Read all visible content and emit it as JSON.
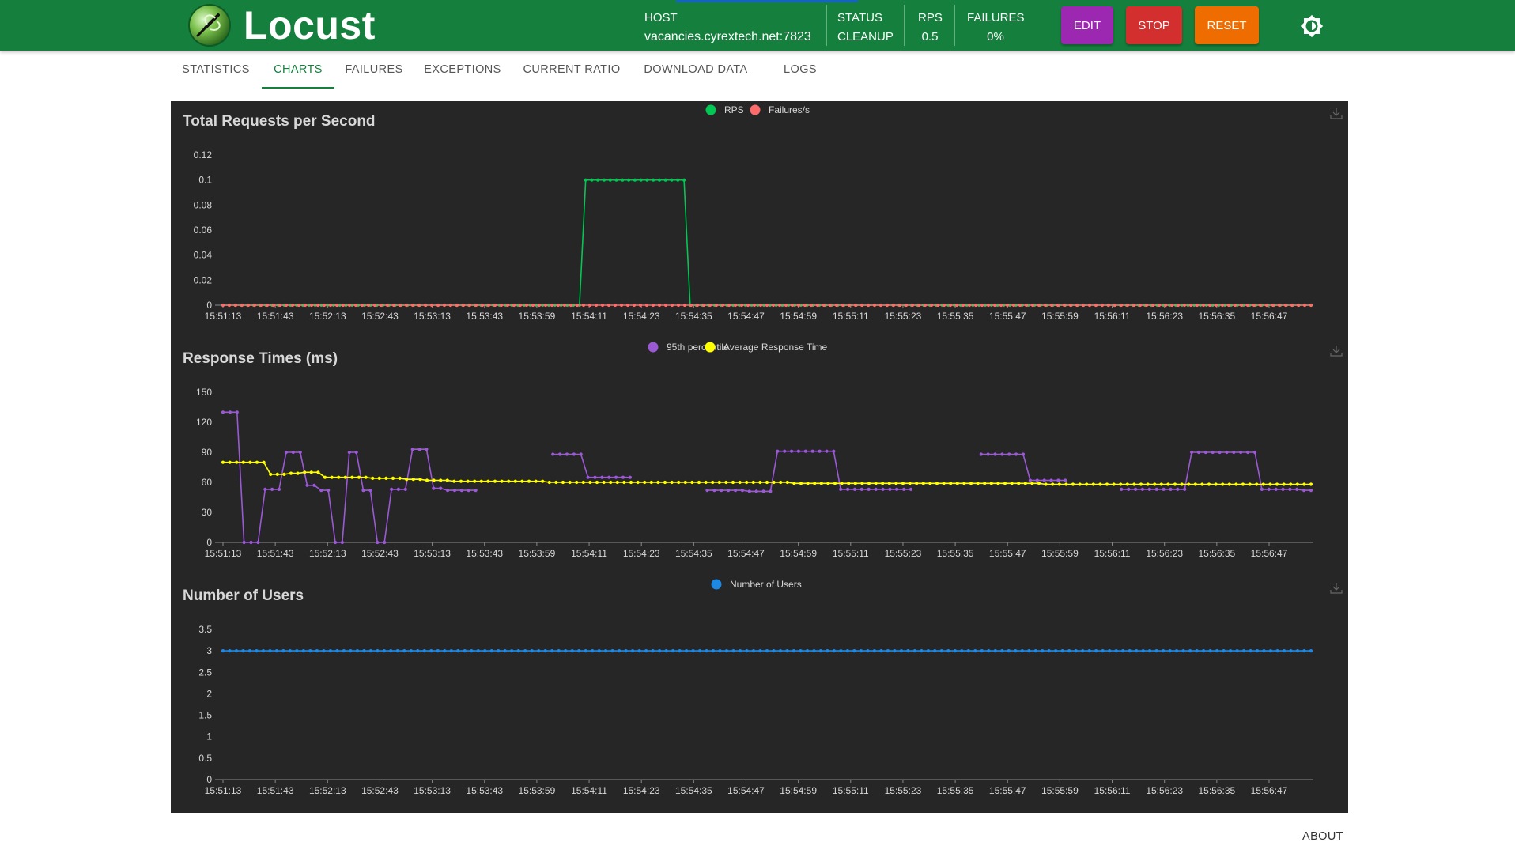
{
  "app": {
    "brand": "Locust"
  },
  "header": {
    "host_label": "HOST",
    "host_value": "vacancies.cyrextech.net:7823",
    "status_label": "STATUS",
    "status_value": "CLEANUP",
    "rps_label": "RPS",
    "rps_value": "0.5",
    "failures_label": "FAILURES",
    "failures_value": "0%",
    "edit_label": "EDIT",
    "stop_label": "STOP",
    "reset_label": "RESET",
    "colors": {
      "bar": "#15803d",
      "edit": "#9c27b0",
      "stop": "#d32f2f",
      "reset": "#ef6c00"
    }
  },
  "tabs": [
    {
      "label": "STATISTICS",
      "active": false
    },
    {
      "label": "CHARTS",
      "active": true
    },
    {
      "label": "FAILURES",
      "active": false
    },
    {
      "label": "EXCEPTIONS",
      "active": false
    },
    {
      "label": "CURRENT RATIO",
      "active": false
    },
    {
      "label": "DOWNLOAD DATA",
      "active": false
    },
    {
      "label": "LOGS",
      "active": false
    }
  ],
  "footer": {
    "about_label": "ABOUT"
  },
  "icons": {
    "download": "download-icon",
    "theme": "brightness-icon",
    "logo": "locust-logo-icon"
  },
  "chart_data": [
    {
      "type": "line",
      "title": "Total Requests per Second",
      "x_tick_labels": [
        "15:51:13",
        "15:51:43",
        "15:52:13",
        "15:52:43",
        "15:53:13",
        "15:53:43",
        "15:53:59",
        "15:54:11",
        "15:54:23",
        "15:54:35",
        "15:54:47",
        "15:54:59",
        "15:55:11",
        "15:55:23",
        "15:55:35",
        "15:55:47",
        "15:55:59",
        "15:56:11",
        "15:56:23",
        "15:56:35",
        "15:56:47"
      ],
      "y_ticks": [
        "0",
        "0.02",
        "0.04",
        "0.06",
        "0.08",
        "0.1",
        "0.12"
      ],
      "ylim": [
        0,
        0.12
      ],
      "legend_position": "top-center",
      "grid": false,
      "series": [
        {
          "name": "RPS",
          "color": "#00c853",
          "values": [
            0,
            0,
            0,
            0,
            0,
            0,
            0,
            0,
            0,
            0,
            0,
            0,
            0,
            0,
            0,
            0,
            0,
            0,
            0,
            0,
            0,
            0,
            0,
            0,
            0,
            0,
            0,
            0,
            0,
            0,
            0,
            0,
            0,
            0,
            0,
            0,
            0,
            0,
            0,
            0,
            0,
            0,
            0,
            0,
            0,
            0,
            0,
            0,
            0,
            0,
            0,
            0,
            0,
            0,
            0,
            0,
            0,
            0,
            0,
            0.1,
            0.1,
            0.1,
            0.1,
            0.1,
            0.1,
            0.1,
            0.1,
            0.1,
            0.1,
            0.1,
            0.1,
            0.1,
            0.1,
            0.1,
            0.1,
            0.1,
            0,
            0,
            0,
            0,
            0,
            0,
            0,
            0,
            0,
            0,
            0,
            0,
            0,
            0,
            0,
            0,
            0,
            0,
            0,
            0,
            0,
            0,
            0,
            0,
            0,
            0,
            0,
            0,
            0,
            0,
            0,
            0,
            0,
            0,
            0,
            0,
            0,
            0,
            0,
            0,
            0,
            0,
            0,
            0,
            0,
            0,
            0,
            0,
            0,
            0,
            0,
            0,
            0,
            0,
            0,
            0,
            0,
            0,
            0,
            0,
            0,
            0,
            0,
            0,
            0,
            0,
            0,
            0,
            0,
            0,
            0,
            0,
            0,
            0,
            0,
            0,
            0,
            0,
            0,
            0,
            0,
            0,
            0,
            0,
            0,
            0,
            0,
            0,
            0,
            0,
            0,
            0,
            0,
            0,
            0,
            0,
            0,
            0,
            0,
            0,
            0,
            0
          ]
        },
        {
          "name": "Failures/s",
          "color": "#ff6b6b",
          "values": [
            0,
            0,
            0,
            0,
            0,
            0,
            0,
            0,
            0,
            0,
            0,
            0,
            0,
            0,
            0,
            0,
            0,
            0,
            0,
            0,
            0,
            0,
            0,
            0,
            0,
            0,
            0,
            0,
            0,
            0,
            0,
            0,
            0,
            0,
            0,
            0,
            0,
            0,
            0,
            0,
            0,
            0,
            0,
            0,
            0,
            0,
            0,
            0,
            0,
            0,
            0,
            0,
            0,
            0,
            0,
            0,
            0,
            0,
            0,
            0,
            0,
            0,
            0,
            0,
            0,
            0,
            0,
            0,
            0,
            0,
            0,
            0,
            0,
            0,
            0,
            0,
            0,
            0,
            0,
            0,
            0,
            0,
            0,
            0,
            0,
            0,
            0,
            0,
            0,
            0,
            0,
            0,
            0,
            0,
            0,
            0,
            0,
            0,
            0,
            0,
            0,
            0,
            0,
            0,
            0,
            0,
            0,
            0,
            0,
            0,
            0,
            0,
            0,
            0,
            0,
            0,
            0,
            0,
            0,
            0,
            0,
            0,
            0,
            0,
            0,
            0,
            0,
            0,
            0,
            0,
            0,
            0,
            0,
            0,
            0,
            0,
            0,
            0,
            0,
            0,
            0,
            0,
            0,
            0,
            0,
            0,
            0,
            0,
            0,
            0,
            0,
            0,
            0,
            0,
            0,
            0,
            0,
            0,
            0,
            0,
            0,
            0,
            0,
            0,
            0,
            0,
            0,
            0,
            0,
            0,
            0,
            0,
            0
          ]
        }
      ]
    },
    {
      "type": "line",
      "title": "Response Times (ms)",
      "x_tick_labels": [
        "15:51:13",
        "15:51:43",
        "15:52:13",
        "15:52:43",
        "15:53:13",
        "15:53:43",
        "15:53:59",
        "15:54:11",
        "15:54:23",
        "15:54:35",
        "15:54:47",
        "15:54:59",
        "15:55:11",
        "15:55:23",
        "15:55:35",
        "15:55:47",
        "15:55:59",
        "15:56:11",
        "15:56:23",
        "15:56:35",
        "15:56:47"
      ],
      "y_ticks": [
        "0",
        "30",
        "60",
        "90",
        "120",
        "150"
      ],
      "ylim": [
        0,
        150
      ],
      "legend_position": "top-center",
      "grid": false,
      "series": [
        {
          "name": "95th percentile",
          "color": "#9b59d6",
          "values": [
            130,
            130,
            130,
            0,
            0,
            0,
            53,
            53,
            53,
            90,
            90,
            90,
            57,
            57,
            52,
            52,
            0,
            0,
            90,
            90,
            52,
            52,
            0,
            0,
            53,
            53,
            53,
            93,
            93,
            93,
            54,
            54,
            52,
            52,
            52,
            52,
            52,
            null,
            null,
            null,
            null,
            null,
            null,
            null,
            null,
            null,
            null,
            88,
            88,
            88,
            88,
            88,
            65,
            65,
            65,
            65,
            65,
            65,
            65,
            null,
            null,
            null,
            null,
            null,
            null,
            null,
            null,
            null,
            null,
            52,
            52,
            52,
            52,
            52,
            52,
            51,
            51,
            51,
            51,
            91,
            91,
            91,
            91,
            91,
            91,
            91,
            91,
            91,
            53,
            53,
            53,
            53,
            53,
            53,
            53,
            53,
            53,
            53,
            53,
            null,
            null,
            null,
            null,
            null,
            null,
            null,
            null,
            null,
            88,
            88,
            88,
            88,
            88,
            88,
            88,
            62,
            62,
            62,
            62,
            62,
            62,
            null,
            null,
            null,
            null,
            null,
            null,
            null,
            53,
            53,
            53,
            53,
            53,
            53,
            53,
            53,
            53,
            53,
            90,
            90,
            90,
            90,
            90,
            90,
            90,
            90,
            90,
            90,
            53,
            53,
            53,
            53,
            53,
            53,
            52,
            52
          ]
        },
        {
          "name": "Average Response Time",
          "color": "#ffff00",
          "values": [
            80,
            80,
            80,
            80,
            80,
            80,
            80,
            68,
            68,
            68,
            69,
            69,
            70,
            70,
            70,
            65,
            65,
            65,
            65,
            65,
            65,
            65,
            64,
            64,
            64,
            64,
            64,
            63,
            63,
            63,
            62,
            62,
            62,
            62,
            61,
            61,
            61,
            61,
            61,
            61,
            61,
            61,
            61,
            61,
            61,
            61,
            61,
            61,
            60,
            60,
            60,
            60,
            60,
            60,
            60,
            60,
            60,
            60,
            60,
            60,
            60,
            60,
            60,
            60,
            60,
            60,
            60,
            60,
            60,
            60,
            60,
            60,
            60,
            60,
            60,
            60,
            60,
            60,
            60,
            60,
            60,
            60,
            60,
            60,
            59,
            59,
            59,
            59,
            59,
            59,
            59,
            59,
            59,
            59,
            59,
            59,
            59,
            59,
            59,
            59,
            59,
            59,
            59,
            59,
            59,
            59,
            59,
            59,
            59,
            59,
            59,
            59,
            59,
            59,
            59,
            59,
            59,
            59,
            59,
            59,
            59,
            58,
            58,
            58,
            58,
            58,
            58,
            58,
            58,
            58,
            58,
            58,
            58,
            58,
            58,
            58,
            58,
            58,
            58,
            58,
            58,
            58,
            58,
            58,
            58,
            58,
            58,
            58,
            58,
            58,
            58,
            58,
            58,
            58,
            58,
            58,
            58,
            58,
            58,
            58,
            58
          ]
        }
      ]
    },
    {
      "type": "line",
      "title": "Number of Users",
      "x_tick_labels": [
        "15:51:13",
        "15:51:43",
        "15:52:13",
        "15:52:43",
        "15:53:13",
        "15:53:43",
        "15:53:59",
        "15:54:11",
        "15:54:23",
        "15:54:35",
        "15:54:47",
        "15:54:59",
        "15:55:11",
        "15:55:23",
        "15:55:35",
        "15:55:47",
        "15:55:59",
        "15:56:11",
        "15:56:23",
        "15:56:35",
        "15:56:47"
      ],
      "y_ticks": [
        "0",
        "0.5",
        "1",
        "1.5",
        "2",
        "2.5",
        "3",
        "3.5"
      ],
      "ylim": [
        0,
        3.5
      ],
      "legend_position": "top-center",
      "grid": false,
      "series": [
        {
          "name": "Number of Users",
          "color": "#1e88e5",
          "values": [
            3,
            3,
            3,
            3,
            3,
            3,
            3,
            3,
            3,
            3,
            3,
            3,
            3,
            3,
            3,
            3,
            3,
            3,
            3,
            3,
            3,
            3,
            3,
            3,
            3,
            3,
            3,
            3,
            3,
            3,
            3,
            3,
            3,
            3,
            3,
            3,
            3,
            3,
            3,
            3,
            3,
            3,
            3,
            3,
            3,
            3,
            3,
            3,
            3,
            3,
            3,
            3,
            3,
            3,
            3,
            3,
            3,
            3,
            3,
            3,
            3,
            3,
            3,
            3,
            3,
            3,
            3,
            3,
            3,
            3,
            3,
            3,
            3,
            3,
            3,
            3,
            3,
            3,
            3,
            3,
            3,
            3,
            3,
            3,
            3,
            3,
            3,
            3,
            3,
            3,
            3,
            3,
            3,
            3,
            3,
            3,
            3,
            3,
            3,
            3,
            3,
            3,
            3,
            3,
            3,
            3,
            3,
            3,
            3,
            3,
            3,
            3,
            3,
            3,
            3,
            3,
            3,
            3,
            3,
            3,
            3,
            3,
            3,
            3,
            3,
            3,
            3,
            3,
            3,
            3,
            3,
            3,
            3,
            3,
            3,
            3,
            3,
            3,
            3,
            3,
            3,
            3,
            3,
            3,
            3,
            3,
            3,
            3,
            3,
            3,
            3,
            3,
            3,
            3,
            3,
            3,
            3,
            3,
            3,
            3,
            3,
            3,
            3
          ]
        }
      ]
    }
  ]
}
